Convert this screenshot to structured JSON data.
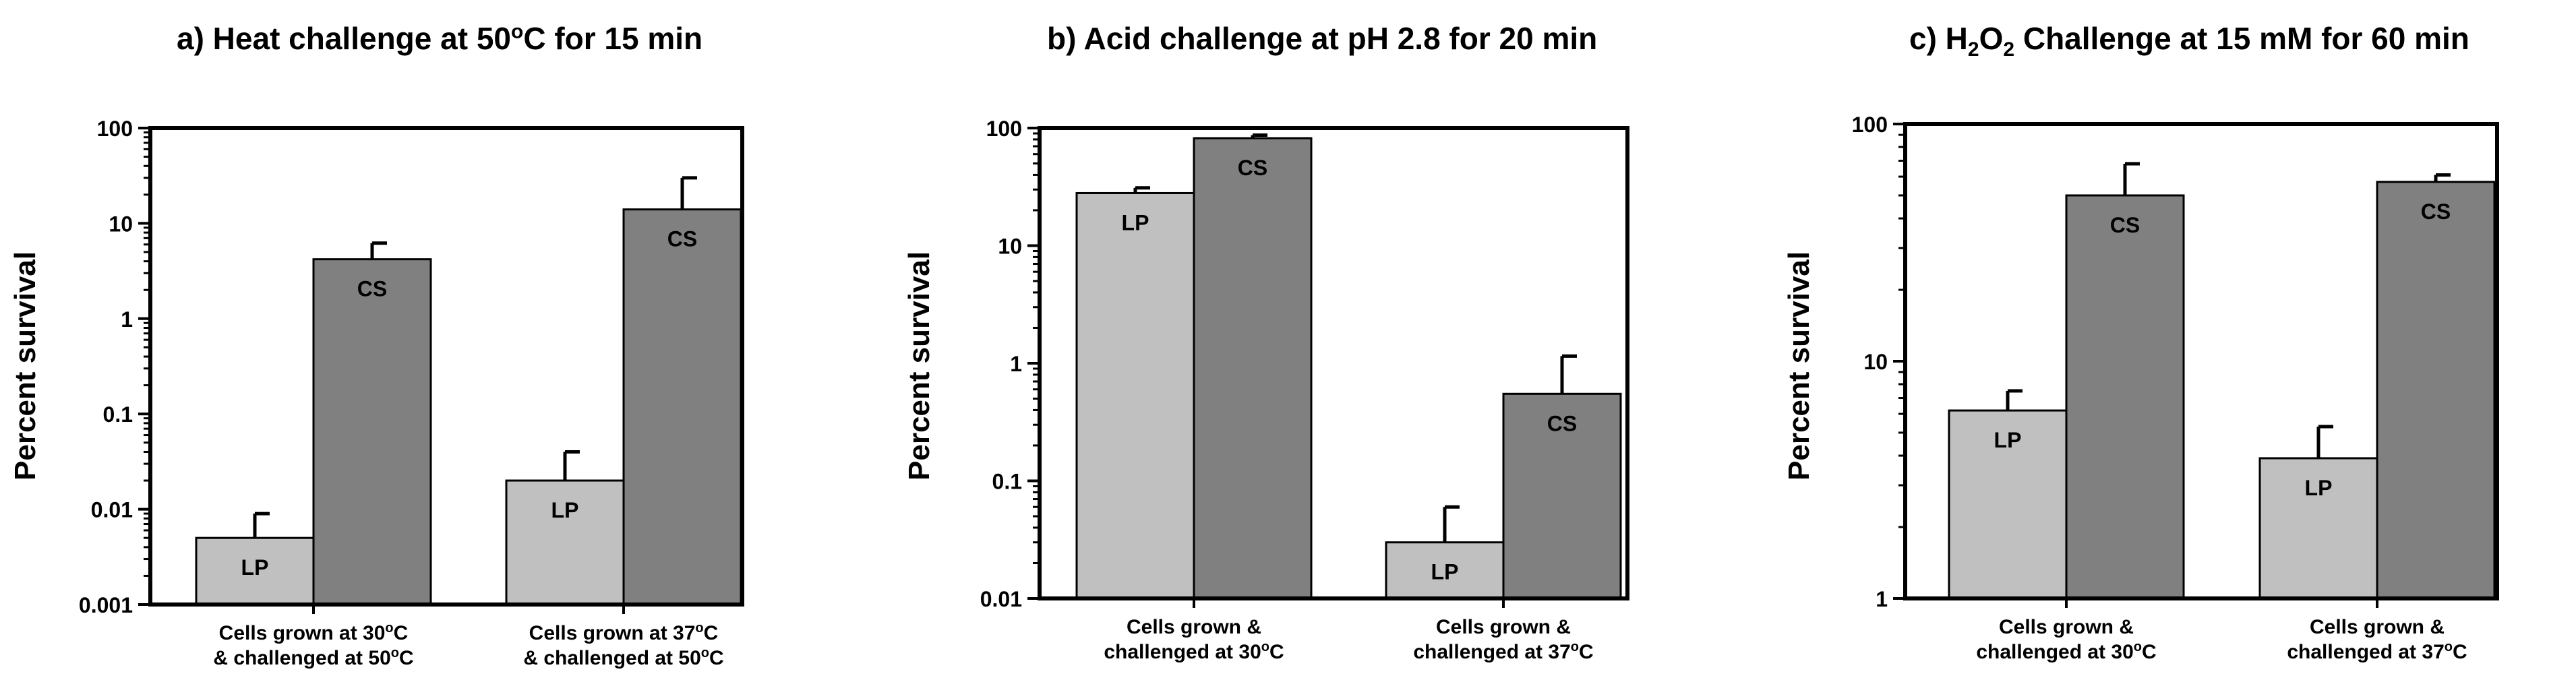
{
  "chart_data": [
    {
      "type": "bar",
      "title_parts": [
        "a) Heat challenge at 50",
        "o",
        "C for 15 min"
      ],
      "ylabel": "Percent survival",
      "yscale": "log",
      "ylim": [
        0.001,
        100
      ],
      "yticks": [
        0.001,
        0.01,
        0.1,
        1,
        10,
        100
      ],
      "ytick_labels": [
        "0.001",
        "0.01",
        "0.1",
        "1",
        "10",
        "100"
      ],
      "categories": [
        {
          "line1": [
            "Cells grown at 30",
            "o",
            "C"
          ],
          "line2": [
            "& challenged at 50",
            "o",
            "C"
          ]
        },
        {
          "line1": [
            "Cells grown at 37",
            "o",
            "C"
          ],
          "line2": [
            "& challenged at 50",
            "o",
            "C"
          ]
        }
      ],
      "series": [
        {
          "name": "LP",
          "color": "#c0c0c0",
          "values": [
            0.005,
            0.02
          ],
          "errors_upper": [
            0.009,
            0.04
          ]
        },
        {
          "name": "CS",
          "color": "#808080",
          "values": [
            4.2,
            14
          ],
          "errors_upper": [
            6.2,
            30
          ]
        }
      ],
      "grid": false
    },
    {
      "type": "bar",
      "title_parts": [
        "b) Acid challenge at pH 2.8 for 20 min"
      ],
      "ylabel": "Percent survival",
      "yscale": "log",
      "ylim": [
        0.01,
        100
      ],
      "yticks": [
        0.01,
        0.1,
        1,
        10,
        100
      ],
      "ytick_labels": [
        "0.01",
        "0.1",
        "1",
        "10",
        "100"
      ],
      "categories": [
        {
          "line1": [
            "Cells grown &"
          ],
          "line2": [
            "challenged at 30",
            "o",
            "C"
          ]
        },
        {
          "line1": [
            "Cells grown &"
          ],
          "line2": [
            "challenged at 37",
            "o",
            "C"
          ]
        }
      ],
      "series": [
        {
          "name": "LP",
          "color": "#c0c0c0",
          "values": [
            28,
            0.03
          ],
          "errors_upper": [
            31,
            0.06
          ]
        },
        {
          "name": "CS",
          "color": "#808080",
          "values": [
            82,
            0.55
          ],
          "errors_upper": [
            87,
            1.15
          ]
        }
      ],
      "grid": false
    },
    {
      "type": "bar",
      "title_parts": [
        "c) H",
        "2",
        "O",
        "2",
        " Challenge at 15 mM for 60 min"
      ],
      "ylabel": "Percent survival",
      "yscale": "log",
      "ylim": [
        1,
        100
      ],
      "yticks": [
        1,
        10,
        100
      ],
      "ytick_labels": [
        "1",
        "10",
        "100"
      ],
      "categories": [
        {
          "line1": [
            "Cells grown &"
          ],
          "line2": [
            "challenged at 30",
            "o",
            "C"
          ]
        },
        {
          "line1": [
            "Cells grown &"
          ],
          "line2": [
            "challenged at 37",
            "o",
            "C"
          ]
        }
      ],
      "series": [
        {
          "name": "LP",
          "color": "#c0c0c0",
          "values": [
            6.2,
            3.9
          ],
          "errors_upper": [
            7.5,
            5.3
          ]
        },
        {
          "name": "CS",
          "color": "#808080",
          "values": [
            50,
            57
          ],
          "errors_upper": [
            68,
            61
          ]
        }
      ],
      "grid": false
    }
  ]
}
